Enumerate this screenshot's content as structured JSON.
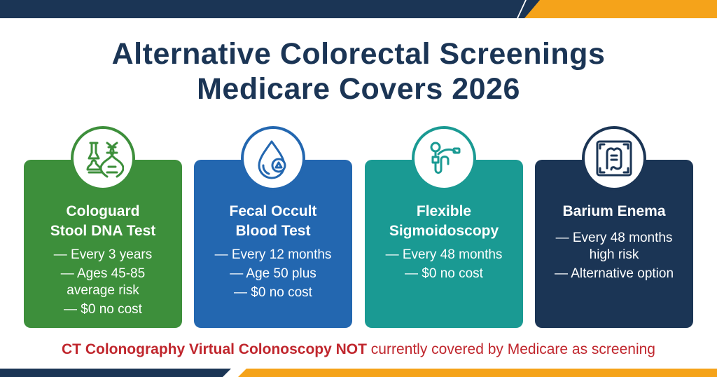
{
  "title": {
    "line1": "Alternative Colorectal Screenings",
    "line2": "Medicare Covers 2026"
  },
  "colors": {
    "navy": "#1b3555",
    "orange": "#f5a31a",
    "green": "#3d8f3b",
    "blue": "#2367b0",
    "teal": "#1a9a93",
    "red": "#c0262d"
  },
  "cards": [
    {
      "icon": "stool-dna-icon",
      "title_line1": "Cologuard",
      "title_line2": "Stool DNA Test",
      "lines": [
        "— Every 3 years",
        "— Ages 45-85 average risk",
        "— $0 no cost"
      ]
    },
    {
      "icon": "blood-drop-icon",
      "title_line1": "Fecal Occult",
      "title_line2": "Blood Test",
      "lines": [
        "— Every 12 months",
        "— Age 50 plus",
        "— $0 no cost"
      ]
    },
    {
      "icon": "sigmoidoscope-icon",
      "title_line1": "Flexible",
      "title_line2": "Sigmoidoscopy",
      "lines": [
        "— Every 48 months",
        "— $0 no cost"
      ]
    },
    {
      "icon": "colon-xray-icon",
      "title_line1": "Barium Enema",
      "title_line2": "",
      "lines": [
        "— Every 48 months high risk",
        "— Alternative option"
      ]
    }
  ],
  "footer": {
    "bold_text": "CT Colonography Virtual Colonoscopy NOT",
    "regular_text": " currently covered by Medicare as screening"
  }
}
